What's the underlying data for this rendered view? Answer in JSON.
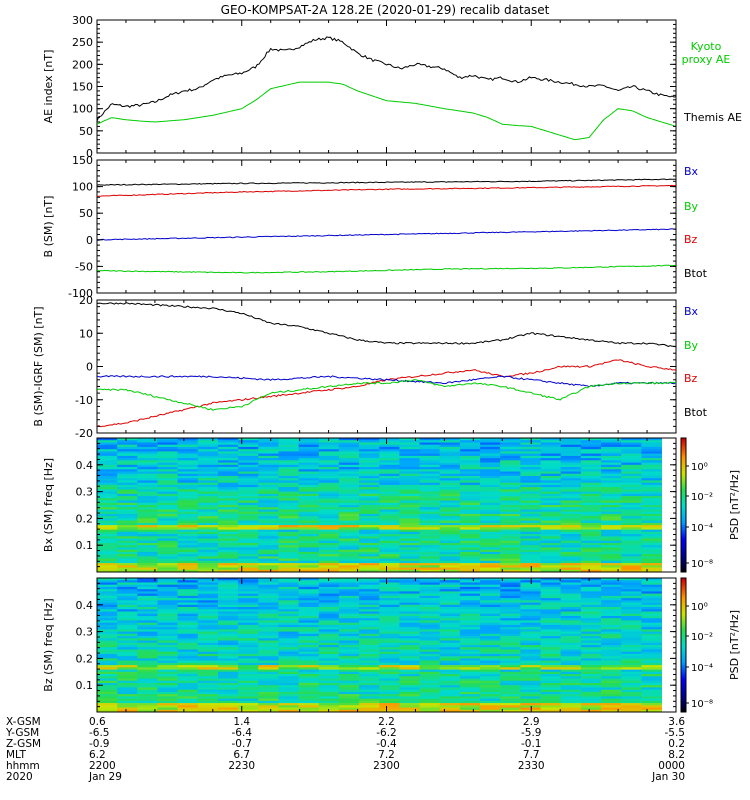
{
  "title": "GEO-KOMPSAT-2A 128.2E (2020-01-29) recalib dataset",
  "colors": {
    "black": "#000000",
    "green": "#00cc00",
    "red": "#dd0000",
    "blue": "#0000cc"
  },
  "chart_data": [
    {
      "type": "line",
      "id": "ae",
      "ylabel": "AE index [nT]",
      "ylim": [
        0,
        300
      ],
      "yticks": [
        0,
        50,
        100,
        150,
        200,
        250,
        300
      ],
      "x_range": [
        0,
        2
      ],
      "legend": [
        {
          "label": "Kyoto proxy AE",
          "color": "#00cc00"
        },
        {
          "label": "Themis AE",
          "color": "#000000"
        }
      ],
      "series": [
        {
          "name": "Themis AE",
          "color": "#000000",
          "x": [
            0,
            0.05,
            0.1,
            0.15,
            0.2,
            0.25,
            0.3,
            0.35,
            0.4,
            0.45,
            0.5,
            0.55,
            0.6,
            0.65,
            0.7,
            0.75,
            0.8,
            0.85,
            0.88,
            0.9,
            0.95,
            1.0,
            1.05,
            1.1,
            1.15,
            1.2,
            1.25,
            1.3,
            1.35,
            1.4,
            1.45,
            1.5,
            1.55,
            1.6,
            1.65,
            1.7,
            1.75,
            1.8,
            1.85,
            1.9,
            1.95,
            2.0
          ],
          "values": [
            75,
            110,
            105,
            108,
            115,
            130,
            140,
            145,
            165,
            175,
            180,
            195,
            235,
            230,
            240,
            255,
            260,
            250,
            235,
            225,
            210,
            200,
            190,
            200,
            195,
            190,
            170,
            175,
            165,
            170,
            160,
            170,
            165,
            160,
            155,
            150,
            152,
            140,
            150,
            140,
            130,
            125
          ]
        },
        {
          "name": "Kyoto proxy AE",
          "color": "#00cc00",
          "x": [
            0,
            0.05,
            0.1,
            0.15,
            0.2,
            0.3,
            0.4,
            0.5,
            0.55,
            0.6,
            0.7,
            0.8,
            0.85,
            0.9,
            1.0,
            1.1,
            1.2,
            1.3,
            1.35,
            1.4,
            1.45,
            1.5,
            1.55,
            1.6,
            1.65,
            1.7,
            1.75,
            1.8,
            1.85,
            1.9,
            1.95,
            2.0
          ],
          "values": [
            65,
            80,
            75,
            72,
            70,
            75,
            85,
            100,
            120,
            145,
            160,
            160,
            155,
            140,
            118,
            112,
            100,
            90,
            80,
            65,
            62,
            60,
            50,
            40,
            30,
            35,
            75,
            100,
            95,
            80,
            70,
            60
          ]
        }
      ]
    },
    {
      "type": "line",
      "id": "bsm",
      "ylabel": "B (SM) [nT]",
      "ylim": [
        -100,
        150
      ],
      "yticks": [
        -100,
        -50,
        0,
        50,
        100,
        150
      ],
      "x_range": [
        0,
        2
      ],
      "legend": [
        {
          "label": "Bx",
          "color": "#0000cc"
        },
        {
          "label": "By",
          "color": "#00cc00"
        },
        {
          "label": "Bz",
          "color": "#dd0000"
        },
        {
          "label": "Btot",
          "color": "#000000"
        }
      ],
      "series": [
        {
          "name": "Btot",
          "color": "#000000",
          "x": [
            0,
            0.5,
            1.0,
            1.5,
            2.0
          ],
          "values": [
            103,
            106,
            108,
            110,
            114
          ]
        },
        {
          "name": "Bz",
          "color": "#dd0000",
          "x": [
            0,
            0.5,
            1.0,
            1.5,
            2.0
          ],
          "values": [
            82,
            90,
            95,
            98,
            102
          ]
        },
        {
          "name": "Bx",
          "color": "#0000cc",
          "x": [
            0,
            0.5,
            1.0,
            1.5,
            2.0
          ],
          "values": [
            0,
            5,
            10,
            15,
            20
          ]
        },
        {
          "name": "By",
          "color": "#00cc00",
          "x": [
            0,
            0.5,
            0.8,
            1.2,
            1.6,
            2.0
          ],
          "values": [
            -58,
            -62,
            -60,
            -55,
            -53,
            -48
          ]
        }
      ]
    },
    {
      "type": "line",
      "id": "bigrf",
      "ylabel": "B (SM)-IGRF (SM) [nT]",
      "ylim": [
        -20,
        20
      ],
      "yticks": [
        -20,
        -10,
        0,
        10,
        20
      ],
      "x_range": [
        0,
        2
      ],
      "legend": [
        {
          "label": "Bx",
          "color": "#0000cc"
        },
        {
          "label": "By",
          "color": "#00cc00"
        },
        {
          "label": "Bz",
          "color": "#dd0000"
        },
        {
          "label": "Btot",
          "color": "#000000"
        }
      ],
      "series": [
        {
          "name": "Btot",
          "color": "#000000",
          "x": [
            0,
            0.1,
            0.2,
            0.3,
            0.4,
            0.5,
            0.6,
            0.7,
            0.8,
            0.9,
            1.0,
            1.1,
            1.2,
            1.3,
            1.4,
            1.5,
            1.6,
            1.7,
            1.8,
            1.9,
            2.0
          ],
          "values": [
            19,
            19,
            18.5,
            18,
            17.5,
            16,
            13,
            12,
            10,
            8,
            7,
            7,
            7,
            7,
            8,
            10,
            9,
            8,
            7,
            7,
            6
          ]
        },
        {
          "name": "Bz",
          "color": "#dd0000",
          "x": [
            0,
            0.1,
            0.2,
            0.3,
            0.4,
            0.5,
            0.6,
            0.7,
            0.8,
            0.9,
            1.0,
            1.1,
            1.2,
            1.3,
            1.4,
            1.5,
            1.6,
            1.7,
            1.8,
            1.9,
            2.0
          ],
          "values": [
            -18,
            -17,
            -15,
            -13,
            -11,
            -10,
            -9,
            -8,
            -7,
            -6,
            -4,
            -3,
            -2,
            -1,
            -3,
            -2,
            0,
            0,
            2,
            0,
            -1
          ]
        },
        {
          "name": "Bx",
          "color": "#0000cc",
          "x": [
            0,
            0.2,
            0.4,
            0.6,
            0.8,
            1.0,
            1.2,
            1.4,
            1.6,
            1.7,
            1.8,
            1.9,
            2.0
          ],
          "values": [
            -3,
            -3,
            -3,
            -4,
            -3,
            -4,
            -5,
            -3,
            -5,
            -6,
            -5,
            -5,
            -5
          ]
        },
        {
          "name": "By",
          "color": "#00cc00",
          "x": [
            0,
            0.1,
            0.2,
            0.3,
            0.4,
            0.5,
            0.6,
            0.7,
            0.8,
            0.9,
            1.0,
            1.1,
            1.2,
            1.3,
            1.4,
            1.5,
            1.6,
            1.7,
            1.8,
            1.9,
            2.0
          ],
          "values": [
            -7,
            -7,
            -9,
            -11,
            -13,
            -12,
            -8,
            -7,
            -6,
            -5,
            -5,
            -4,
            -6,
            -5,
            -6,
            -8,
            -10,
            -6,
            -5,
            -5,
            -5
          ]
        }
      ]
    },
    {
      "type": "heatmap",
      "id": "psd_bx",
      "ylabel": "Bx (SM) freq [Hz]",
      "ylim": [
        0,
        0.5
      ],
      "yticks": [
        0.1,
        0.2,
        0.3,
        0.4
      ],
      "colorbar_label": "PSD [nT²/Hz]",
      "colorbar_ticks": [
        "10⁰",
        "10⁻²",
        "10⁻⁴",
        "10⁻⁸"
      ]
    },
    {
      "type": "heatmap",
      "id": "psd_bz",
      "ylabel": "Bz (SM) freq [Hz]",
      "ylim": [
        0,
        0.5
      ],
      "yticks": [
        0.1,
        0.2,
        0.3,
        0.4
      ],
      "colorbar_label": "PSD [nT²/Hz]",
      "colorbar_ticks": [
        "10⁰",
        "10⁻²",
        "10⁻⁴",
        "10⁻⁸"
      ]
    }
  ],
  "x_axis": {
    "row_labels": [
      "X-GSM",
      "Y-GSM",
      "Z-GSM",
      "MLT",
      "hhmm",
      "2020"
    ],
    "ticks": [
      {
        "x": 0.0,
        "rows": [
          "0.6",
          "-6.5",
          "-0.9",
          "6.2",
          "2200",
          "Jan 29"
        ]
      },
      {
        "x": 0.5,
        "rows": [
          "1.4",
          "-6.4",
          "-0.7",
          "6.7",
          "2230",
          ""
        ]
      },
      {
        "x": 1.0,
        "rows": [
          "2.2",
          "-6.2",
          "-0.4",
          "7.2",
          "2300",
          ""
        ]
      },
      {
        "x": 1.5,
        "rows": [
          "2.9",
          "-5.9",
          "-0.1",
          "7.7",
          "2330",
          ""
        ]
      },
      {
        "x": 2.0,
        "rows": [
          "3.6",
          "-5.5",
          "0.2",
          "8.2",
          "0000",
          "Jan 30"
        ]
      }
    ]
  }
}
